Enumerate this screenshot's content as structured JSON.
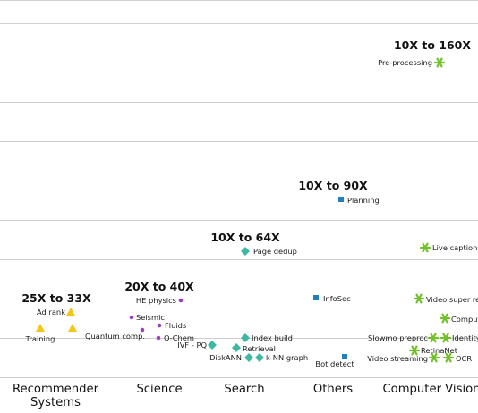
{
  "chart_data": {
    "type": "scatter",
    "categories": [
      "Recommender Systems",
      "Science",
      "Search",
      "Others",
      "Computer Vision"
    ],
    "category_lines": [
      [
        "Recommender",
        "Systems"
      ],
      [
        "Science"
      ],
      [
        "Search"
      ],
      [
        "Others"
      ],
      [
        "Computer Vision"
      ]
    ],
    "group_labels": [
      {
        "text": "25X to 33X",
        "category": "Recommender Systems"
      },
      {
        "text": "20X to 40X",
        "category": "Science"
      },
      {
        "text": "10X to 64X",
        "category": "Search"
      },
      {
        "text": "10X to 90X",
        "category": "Others"
      },
      {
        "text": "10X to 160X",
        "category": "Computer Vision"
      }
    ],
    "series": [
      {
        "category": "Recommender Systems",
        "marker": "triangle",
        "color": "#f5c518",
        "points": [
          {
            "label": "Ad rank"
          },
          {
            "label": "Training"
          },
          {
            "label": ""
          }
        ]
      },
      {
        "category": "Science",
        "marker": "dot",
        "color": "#9b3fc4",
        "points": [
          {
            "label": "HE physics"
          },
          {
            "label": "Seismic"
          },
          {
            "label": "Fluids"
          },
          {
            "label": "Quantum comp."
          },
          {
            "label": "Q-Chem"
          }
        ]
      },
      {
        "category": "Search",
        "marker": "diamond",
        "color": "#3db8a3",
        "points": [
          {
            "label": "Page dedup"
          },
          {
            "label": "Index build"
          },
          {
            "label": "IVF - PQ"
          },
          {
            "label": "Retrieval"
          },
          {
            "label": "DiskANN"
          },
          {
            "label": "k-NN graph"
          }
        ]
      },
      {
        "category": "Others",
        "marker": "square",
        "color": "#1f7fc1",
        "points": [
          {
            "label": "Planning"
          },
          {
            "label": "InfoSec"
          },
          {
            "label": "Bot detect"
          }
        ]
      },
      {
        "category": "Computer Vision",
        "marker": "asterisk",
        "color": "#72c02c",
        "points": [
          {
            "label": "Pre-processing"
          },
          {
            "label": "Live caption"
          },
          {
            "label": "Video super res"
          },
          {
            "label": "Comput"
          },
          {
            "label": "Slowmo preproc"
          },
          {
            "label": "Identity"
          },
          {
            "label": "RetinaNet"
          },
          {
            "label": "Video streaming"
          },
          {
            "label": "OCR"
          }
        ]
      }
    ],
    "grid": true,
    "xlabel": "",
    "ylabel": ""
  }
}
